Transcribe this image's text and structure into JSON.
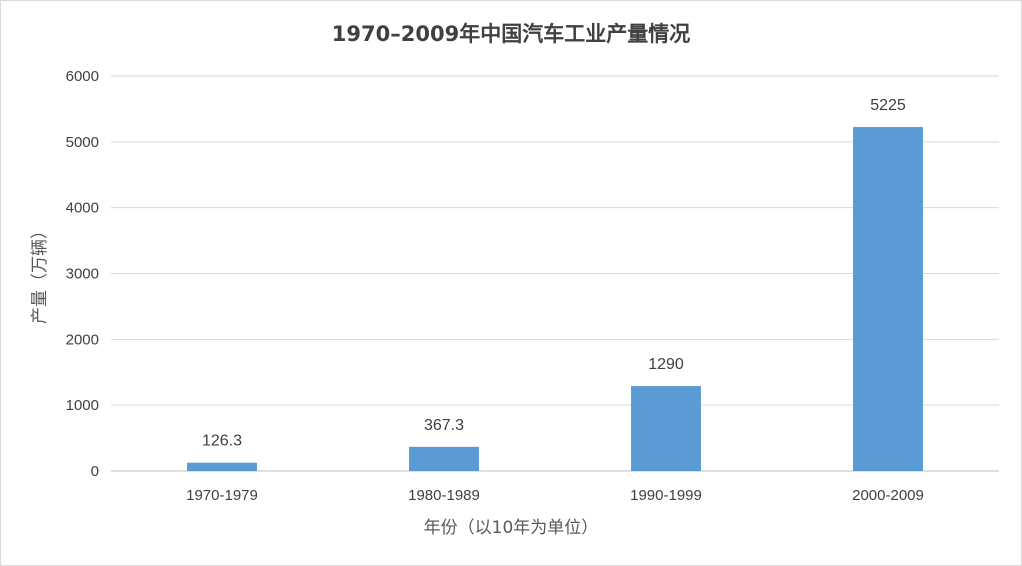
{
  "chart_data": {
    "type": "bar",
    "title": "1970–2009年中国汽车工业产量情况",
    "xlabel": "年份（以10年为单位）",
    "ylabel": "产量（万辆）",
    "categories": [
      "1970-1979",
      "1980-1989",
      "1990-1999",
      "2000-2009"
    ],
    "values": [
      126.3,
      367.3,
      1290,
      5225
    ],
    "data_labels": [
      "126.3",
      "367.3",
      "1290",
      "5225"
    ],
    "ylim": [
      0,
      6000
    ],
    "yticks": [
      0,
      1000,
      2000,
      3000,
      4000,
      5000,
      6000
    ],
    "grid": true,
    "legend": "none",
    "colors": {
      "bar": "#5b9bd5",
      "grid": "#d9d9d9",
      "text": "#404040"
    }
  }
}
